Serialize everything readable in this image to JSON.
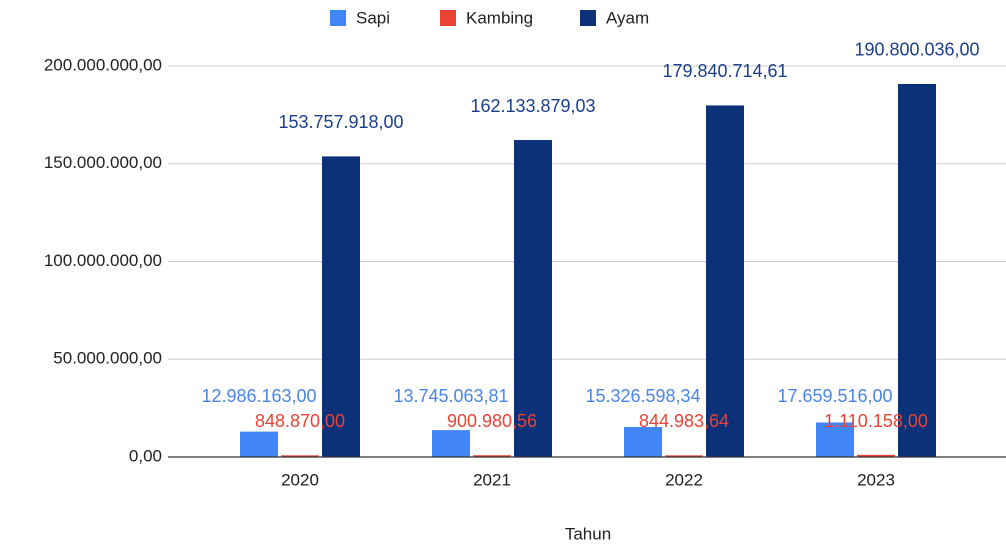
{
  "chart_data": {
    "type": "bar",
    "x_label": "Tahun",
    "categories": [
      "2020",
      "2021",
      "2022",
      "2023"
    ],
    "series": [
      {
        "name": "Sapi",
        "color": "#4285f4",
        "values": [
          12986163,
          13745063.81,
          15326598.34,
          17659516
        ],
        "value_labels": [
          "12.986.163,00",
          "13.745.063,81",
          "15.326.598,34",
          "17.659.516,00"
        ]
      },
      {
        "name": "Kambing",
        "color": "#ea4335",
        "values": [
          848870,
          900980.56,
          844983.64,
          1110158
        ],
        "value_labels": [
          "848.870,00",
          "900.980,56",
          "844.983,64",
          "1.110.158,00"
        ]
      },
      {
        "name": "Ayam",
        "color": "#0b3178",
        "values": [
          153757918,
          162133879.03,
          179840714.61,
          190800036
        ],
        "value_labels": [
          "153.757.918,00",
          "162.133.879,03",
          "179.840.714,61",
          "190.800.036,00"
        ]
      }
    ],
    "ylim": [
      0,
      200000000
    ],
    "yticks": [
      {
        "value": 0,
        "label": "0,00"
      },
      {
        "value": 50000000,
        "label": "50.000.000,00"
      },
      {
        "value": 100000000,
        "label": "100.000.000,00"
      },
      {
        "value": 150000000,
        "label": "150.000.000,00"
      },
      {
        "value": 200000000,
        "label": "200.000.000,00"
      }
    ],
    "grid": true,
    "legend": "top"
  }
}
